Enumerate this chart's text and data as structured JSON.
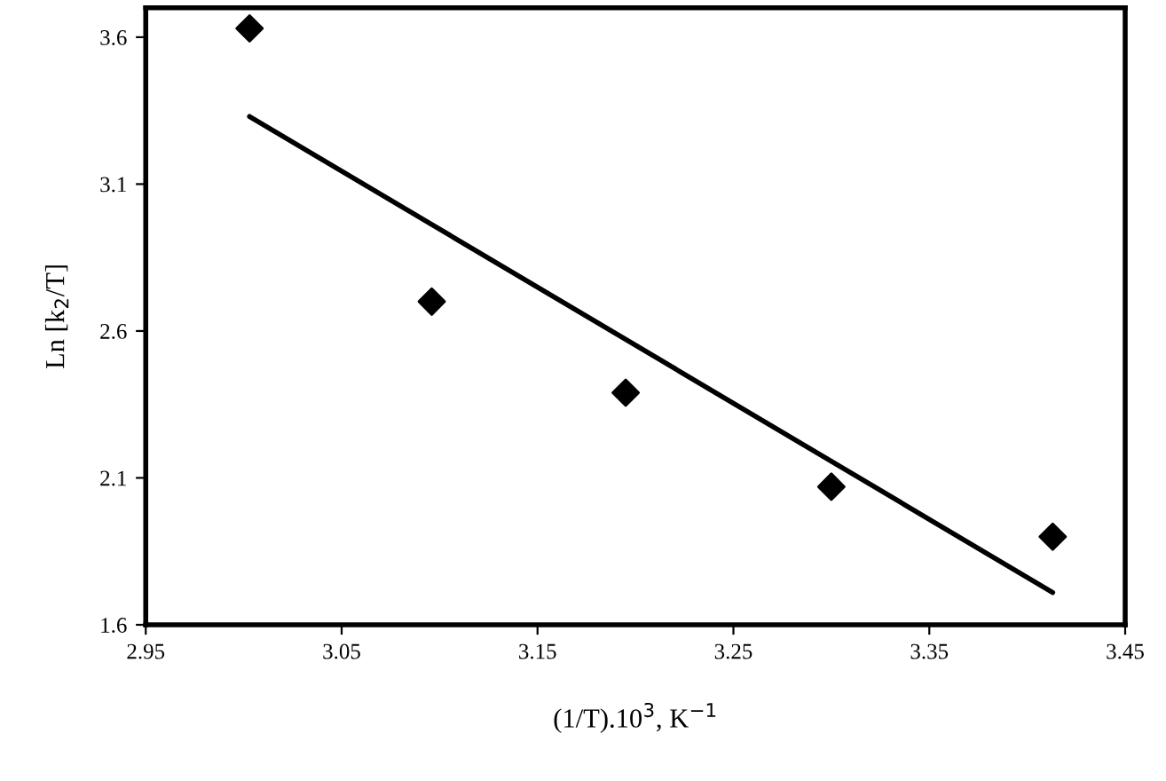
{
  "chart_data": {
    "type": "scatter",
    "xlabel": "(1/T).10$^{3}$, K$^{−1}$",
    "ylabel": "Ln [k$_{2}$/T]",
    "series": [
      {
        "color": "#000000",
        "marker": "diamond",
        "x": [
          3.003,
          3.096,
          3.195,
          3.3,
          3.413
        ],
        "values": [
          3.63,
          2.7,
          2.39,
          2.07,
          1.9
        ]
      },
      {
        "type": "line",
        "color": "#000000",
        "marker": "none",
        "line_style": "solid",
        "x": [
          3.003,
          3.413
        ],
        "values": [
          3.33,
          1.71
        ]
      }
    ],
    "xlim": [
      2.95,
      3.45
    ],
    "xticks": [
      2.95,
      3.05,
      3.15,
      3.25,
      3.35,
      3.45
    ],
    "ylim": [
      1.6,
      3.7
    ],
    "yticks": [
      1.6,
      2.1,
      2.6,
      3.1,
      3.6
    ],
    "grid": false
  }
}
